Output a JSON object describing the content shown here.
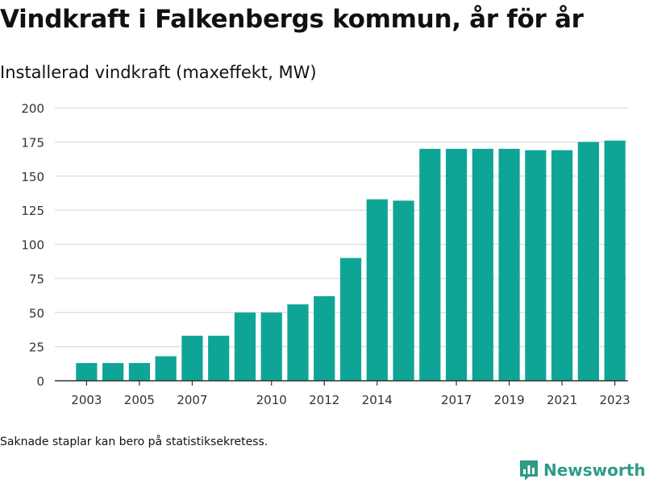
{
  "title": "Vindkraft i Falkenbergs kommun, år för år",
  "subtitle": "Installerad vindkraft (maxeffekt, MW)",
  "note": "Saknade staplar kan bero på statistiksekretess.",
  "brand": {
    "name": "Newsworthy",
    "icon": "bar-chart-logo-icon"
  },
  "colors": {
    "bar": "#0ea597",
    "grid": "#dcdcdc",
    "axis": "#333333",
    "brand": "#2f9b89"
  },
  "chart_data": {
    "type": "bar",
    "title": "Vindkraft i Falkenbergs kommun, år för år",
    "subtitle": "Installerad vindkraft (maxeffekt, MW)",
    "xlabel": "",
    "ylabel": "",
    "ylim": [
      0,
      200
    ],
    "yticks": [
      0,
      25,
      50,
      75,
      100,
      125,
      150,
      175,
      200
    ],
    "xticks": [
      2003,
      2005,
      2007,
      2010,
      2012,
      2014,
      2017,
      2019,
      2021,
      2023
    ],
    "grid": true,
    "legend": "none",
    "categories": [
      2003,
      2004,
      2005,
      2006,
      2007,
      2008,
      2009,
      2010,
      2011,
      2012,
      2013,
      2014,
      2015,
      2016,
      2017,
      2018,
      2019,
      2020,
      2021,
      2022,
      2023
    ],
    "values": [
      13,
      13,
      13,
      18,
      33,
      33,
      50,
      50,
      56,
      62,
      90,
      133,
      132,
      170,
      170,
      170,
      170,
      169,
      169,
      175,
      176
    ]
  }
}
